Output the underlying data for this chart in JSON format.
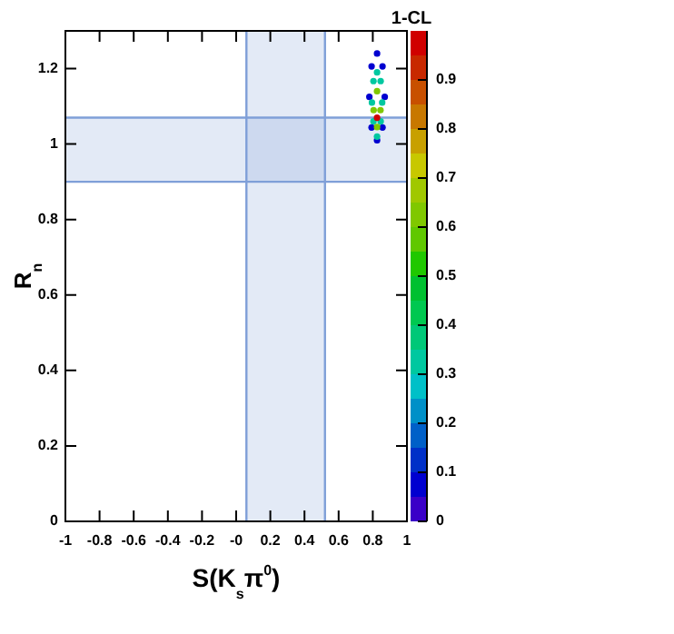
{
  "chart_data": {
    "type": "scatter",
    "xlabel": "S(K$_{s}$π$^{0}$)",
    "ylabel": "R$_{n}$",
    "clabel": "1-CL",
    "xlim": [
      -1,
      1
    ],
    "ylim": [
      0,
      1.3
    ],
    "xticks": [
      -1,
      -0.8,
      -0.6,
      -0.4,
      -0.2,
      {
        "value": 0,
        "label": "-0"
      },
      0.2,
      0.4,
      0.6,
      0.8,
      1
    ],
    "yticks": [
      0,
      0.2,
      0.4,
      0.6,
      0.8,
      1,
      1.2
    ],
    "clim": [
      0,
      1
    ],
    "cticks": [
      0,
      0.1,
      0.2,
      0.3,
      0.4,
      0.5,
      0.6,
      0.7,
      0.8,
      0.9
    ],
    "grid": false,
    "legend": false,
    "marker": "circle",
    "bands": [
      {
        "axis": "x",
        "from": 0.06,
        "to": 0.52,
        "color": "#7f9fd8"
      },
      {
        "axis": "y",
        "from": 0.9,
        "to": 1.07,
        "color": "#7f9fd8"
      }
    ],
    "ref_lines": [
      {
        "axis": "x",
        "value": 0.06,
        "color": "#7f9fd8"
      },
      {
        "axis": "x",
        "value": 0.52,
        "color": "#7f9fd8"
      },
      {
        "axis": "y",
        "value": 0.9,
        "color": "#7f9fd8"
      },
      {
        "axis": "y",
        "value": 1.07,
        "color": "#7f9fd8"
      }
    ],
    "x": [
      0.87,
      0.857,
      0.825,
      0.793,
      0.78,
      0.793,
      0.825,
      0.857,
      0.855,
      0.846,
      0.825,
      0.804,
      0.795,
      0.804,
      0.825,
      0.846,
      0.845,
      0.825,
      0.805,
      0.825,
      0.825
    ],
    "values": [
      1.125,
      1.206,
      1.24,
      1.206,
      1.125,
      1.044,
      1.01,
      1.044,
      1.11,
      1.167,
      1.19,
      1.167,
      1.11,
      1.06,
      1.02,
      1.06,
      1.09,
      1.14,
      1.09,
      1.045,
      1.07
    ],
    "cvalues": [
      0.05,
      0.05,
      0.05,
      0.05,
      0.05,
      0.05,
      0.05,
      0.05,
      0.3,
      0.3,
      0.3,
      0.3,
      0.3,
      0.3,
      0.3,
      0.3,
      0.6,
      0.6,
      0.6,
      0.6,
      0.98
    ]
  }
}
